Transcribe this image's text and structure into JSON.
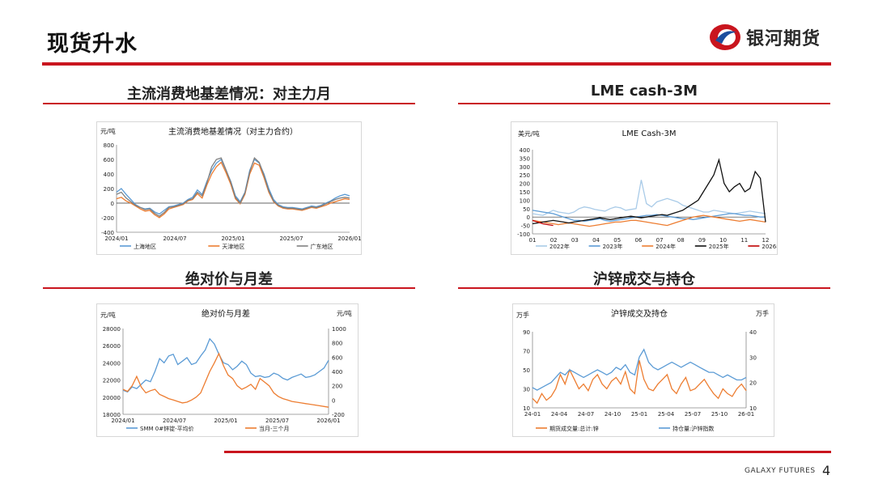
{
  "header": {
    "title": "现货升水",
    "brand": "银河期货",
    "brand_en": "GALAXY FUTURES",
    "page": "4"
  },
  "sections": {
    "s1": "主流消费地基差情况：对主力月",
    "s2": "LME cash-3M",
    "s3": "绝对价与月差",
    "s4": "沪锌成交与持仓"
  },
  "colors": {
    "red": "#c9151e",
    "blue": "#5b9bd5",
    "orange": "#ed7d31",
    "gray": "#808080",
    "lightblue": "#a9cbe8",
    "black": "#111111",
    "darkred": "#c00000"
  },
  "chart_data": [
    {
      "type": "line",
      "title": "主流消费地基差情况（对主力合约）",
      "ylabel": "元/吨",
      "ylim": [
        -400,
        800
      ],
      "yticks": [
        "800",
        "600",
        "400",
        "200",
        "0",
        "-200",
        "-400"
      ],
      "xticks": [
        "2024/01",
        "2024/07",
        "2025/01",
        "2025/07",
        "2026/01"
      ],
      "series": [
        {
          "name": "上海地区",
          "color": "#5b9bd5",
          "values": [
            150,
            200,
            120,
            50,
            -20,
            -60,
            -80,
            -70,
            -120,
            -150,
            -100,
            -50,
            -40,
            -20,
            0,
            50,
            80,
            180,
            120,
            300,
            450,
            550,
            600,
            450,
            300,
            100,
            20,
            150,
            450,
            600,
            550,
            400,
            200,
            50,
            -20,
            -50,
            -60,
            -60,
            -70,
            -80,
            -60,
            -40,
            -50,
            -30,
            0,
            30,
            70,
            100,
            120,
            100
          ]
        },
        {
          "name": "天津地区",
          "color": "#ed7d31",
          "values": [
            60,
            80,
            30,
            0,
            -40,
            -80,
            -110,
            -100,
            -160,
            -200,
            -150,
            -80,
            -60,
            -40,
            -20,
            30,
            50,
            130,
            70,
            250,
            400,
            500,
            560,
            420,
            260,
            60,
            -10,
            120,
            400,
            550,
            520,
            350,
            150,
            20,
            -40,
            -70,
            -80,
            -80,
            -90,
            -100,
            -80,
            -60,
            -70,
            -50,
            -30,
            0,
            20,
            40,
            60,
            50
          ]
        },
        {
          "name": "广东地区",
          "color": "#808080",
          "values": [
            120,
            150,
            70,
            20,
            -30,
            -60,
            -90,
            -80,
            -140,
            -180,
            -130,
            -60,
            -50,
            -30,
            -10,
            40,
            60,
            150,
            100,
            280,
            500,
            600,
            620,
            460,
            290,
            80,
            0,
            140,
            430,
            620,
            560,
            380,
            170,
            30,
            -30,
            -60,
            -70,
            -70,
            -80,
            -90,
            -70,
            -50,
            -60,
            -40,
            -10,
            20,
            50,
            70,
            80,
            70
          ]
        }
      ]
    },
    {
      "type": "line",
      "title": "LME Cash-3M",
      "ylabel": "美元/吨",
      "ylim": [
        -100,
        400
      ],
      "yticks": [
        "400",
        "350",
        "300",
        "250",
        "200",
        "150",
        "100",
        "50",
        "0",
        "-50",
        "-100"
      ],
      "xticks": [
        "01",
        "02",
        "03",
        "04",
        "05",
        "06",
        "07",
        "08",
        "09",
        "10",
        "11",
        "12"
      ],
      "series": [
        {
          "name": "2022年",
          "color": "#a9cbe8",
          "values": [
            20,
            15,
            10,
            25,
            40,
            30,
            25,
            20,
            30,
            50,
            60,
            55,
            45,
            40,
            35,
            50,
            60,
            55,
            40,
            45,
            50,
            220,
            80,
            60,
            90,
            100,
            110,
            100,
            90,
            70,
            60,
            50,
            40,
            30,
            30,
            40,
            35,
            30,
            25,
            20,
            25,
            30,
            35,
            30,
            25,
            20
          ]
        },
        {
          "name": "2023年",
          "color": "#5b9bd5",
          "values": [
            40,
            35,
            30,
            25,
            20,
            10,
            0,
            -10,
            -20,
            -20,
            -25,
            -20,
            -15,
            -10,
            -20,
            -25,
            -20,
            -15,
            -10,
            -5,
            0,
            5,
            10,
            10,
            15,
            10,
            5,
            0,
            -5,
            -10,
            -10,
            -15,
            -10,
            -5,
            0,
            5,
            10,
            15,
            20,
            20,
            15,
            10,
            10,
            5,
            0,
            0
          ]
        },
        {
          "name": "2024年",
          "color": "#ed7d31",
          "values": [
            -20,
            -25,
            -30,
            -35,
            -40,
            -45,
            -40,
            -35,
            -40,
            -45,
            -50,
            -55,
            -50,
            -45,
            -40,
            -35,
            -30,
            -30,
            -25,
            -20,
            -20,
            -25,
            -30,
            -35,
            -40,
            -45,
            -50,
            -40,
            -30,
            -20,
            -10,
            0,
            5,
            10,
            5,
            0,
            -5,
            -10,
            -15,
            -20,
            -25,
            -20,
            -15,
            -20,
            -25,
            -30
          ]
        },
        {
          "name": "2025年",
          "color": "#111111",
          "values": [
            -40,
            -35,
            -30,
            -25,
            -20,
            -25,
            -30,
            -35,
            -30,
            -25,
            -20,
            -15,
            -10,
            -5,
            -10,
            -15,
            -10,
            -5,
            0,
            5,
            0,
            -5,
            0,
            5,
            10,
            15,
            10,
            20,
            30,
            40,
            60,
            80,
            100,
            150,
            200,
            250,
            340,
            200,
            150,
            180,
            200,
            150,
            170,
            270,
            230,
            -30
          ]
        },
        {
          "name": "2026年",
          "color": "#c00000",
          "values": [
            -20,
            -30,
            -40,
            -45,
            -50
          ]
        }
      ]
    },
    {
      "type": "line",
      "title": "绝对价与月差",
      "ylabel": "元/吨",
      "ylabel_right": "元/吨",
      "ylim": [
        18000,
        28000
      ],
      "ylim_right": [
        -200,
        1000
      ],
      "yticks": [
        "28000",
        "26000",
        "24000",
        "22000",
        "20000",
        "18000"
      ],
      "yticks_right": [
        "1000",
        "800",
        "600",
        "400",
        "200",
        "0",
        "-200"
      ],
      "xticks": [
        "2024/01",
        "2024/07",
        "2025/01",
        "2025/07",
        "2026/01"
      ],
      "series": [
        {
          "name": "SMM 0#锌锭-平均价",
          "color": "#5b9bd5",
          "axis": "left",
          "values": [
            20800,
            20600,
            21200,
            21000,
            21500,
            22000,
            21800,
            23000,
            24500,
            24000,
            24800,
            25000,
            23800,
            24200,
            24600,
            23800,
            24000,
            24800,
            25500,
            26800,
            26200,
            25000,
            24000,
            23800,
            23200,
            23600,
            24200,
            23800,
            22800,
            22400,
            22500,
            22300,
            22400,
            22800,
            22600,
            22200,
            22000,
            22300,
            22500,
            22700,
            22300,
            22400,
            22600,
            23000,
            23400,
            24300
          ]
        },
        {
          "name": "当月-三个月",
          "color": "#ed7d31",
          "axis": "right",
          "values": [
            150,
            120,
            200,
            330,
            180,
            100,
            130,
            150,
            80,
            50,
            20,
            0,
            -20,
            -40,
            -30,
            0,
            40,
            100,
            250,
            400,
            520,
            650,
            480,
            350,
            300,
            200,
            150,
            180,
            220,
            150,
            300,
            250,
            200,
            100,
            50,
            20,
            0,
            -20,
            -30,
            -40,
            -50,
            -60,
            -70,
            -80,
            -90,
            -100
          ]
        }
      ]
    },
    {
      "type": "line",
      "title": "沪锌成交及持仓",
      "ylabel": "万手",
      "ylabel_right": "万手",
      "ylim": [
        10,
        90
      ],
      "ylim_right": [
        10,
        40
      ],
      "yticks": [
        "90",
        "70",
        "50",
        "30",
        "10"
      ],
      "yticks_right": [
        "40",
        "30",
        "20",
        "10"
      ],
      "xticks": [
        "24-01",
        "24-04",
        "24-07",
        "24-10",
        "25-01",
        "25-04",
        "25-07",
        "25-10",
        "26-01"
      ],
      "series": [
        {
          "name": "期货成交量:总计:锌",
          "color": "#ed7d31",
          "axis": "left",
          "values": [
            20,
            15,
            25,
            18,
            22,
            30,
            45,
            35,
            50,
            40,
            30,
            35,
            28,
            40,
            45,
            35,
            30,
            38,
            42,
            35,
            48,
            30,
            25,
            60,
            40,
            30,
            28,
            35,
            40,
            45,
            30,
            25,
            35,
            42,
            28,
            30,
            35,
            40,
            32,
            25,
            20,
            30,
            25,
            22,
            30,
            35,
            28
          ]
        },
        {
          "name": "持仓量:沪锌指数",
          "color": "#5b9bd5",
          "axis": "right",
          "values": [
            18,
            17,
            18,
            19,
            20,
            22,
            24,
            23,
            25,
            24,
            23,
            22,
            23,
            24,
            25,
            24,
            23,
            24,
            26,
            25,
            27,
            24,
            23,
            30,
            33,
            28,
            26,
            25,
            26,
            27,
            28,
            27,
            26,
            27,
            28,
            27,
            26,
            25,
            24,
            24,
            23,
            22,
            23,
            22,
            21,
            21,
            22
          ]
        }
      ]
    }
  ]
}
